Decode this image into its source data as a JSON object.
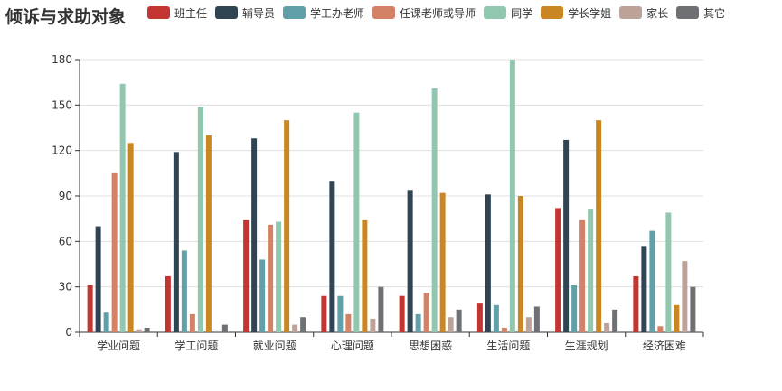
{
  "title": "倾诉与求助对象",
  "chart_data": {
    "type": "bar",
    "title": "倾诉与求助对象",
    "xlabel": "",
    "ylabel": "",
    "ylim": [
      0,
      180
    ],
    "yticks": [
      0,
      30,
      60,
      90,
      120,
      150,
      180
    ],
    "grid": true,
    "legend": "top",
    "categories": [
      "学业问题",
      "学工问题",
      "就业问题",
      "心理问题",
      "思想困惑",
      "生活问题",
      "生涯规划",
      "经济困难"
    ],
    "series": [
      {
        "name": "班主任",
        "color": "#c23531",
        "values": [
          31,
          37,
          74,
          24,
          24,
          19,
          82,
          37
        ]
      },
      {
        "name": "辅导员",
        "color": "#2f4554",
        "values": [
          70,
          119,
          128,
          100,
          94,
          91,
          127,
          57
        ]
      },
      {
        "name": "学工办老师",
        "color": "#61a0a8",
        "values": [
          13,
          54,
          48,
          24,
          12,
          18,
          31,
          67
        ]
      },
      {
        "name": "任课老师或导师",
        "color": "#d48265",
        "values": [
          105,
          12,
          71,
          12,
          26,
          3,
          74,
          4
        ]
      },
      {
        "name": "同学",
        "color": "#91c7ae",
        "values": [
          164,
          149,
          73,
          145,
          161,
          180,
          81,
          79
        ]
      },
      {
        "name": "学长学姐",
        "color": "#ca8622",
        "values": [
          125,
          130,
          140,
          74,
          92,
          90,
          140,
          18
        ]
      },
      {
        "name": "家长",
        "color": "#bda29a",
        "values": [
          2,
          0,
          5,
          9,
          10,
          10,
          6,
          47
        ]
      },
      {
        "name": "其它",
        "color": "#6e7074",
        "values": [
          3,
          5,
          10,
          30,
          15,
          17,
          15,
          30
        ]
      }
    ]
  }
}
